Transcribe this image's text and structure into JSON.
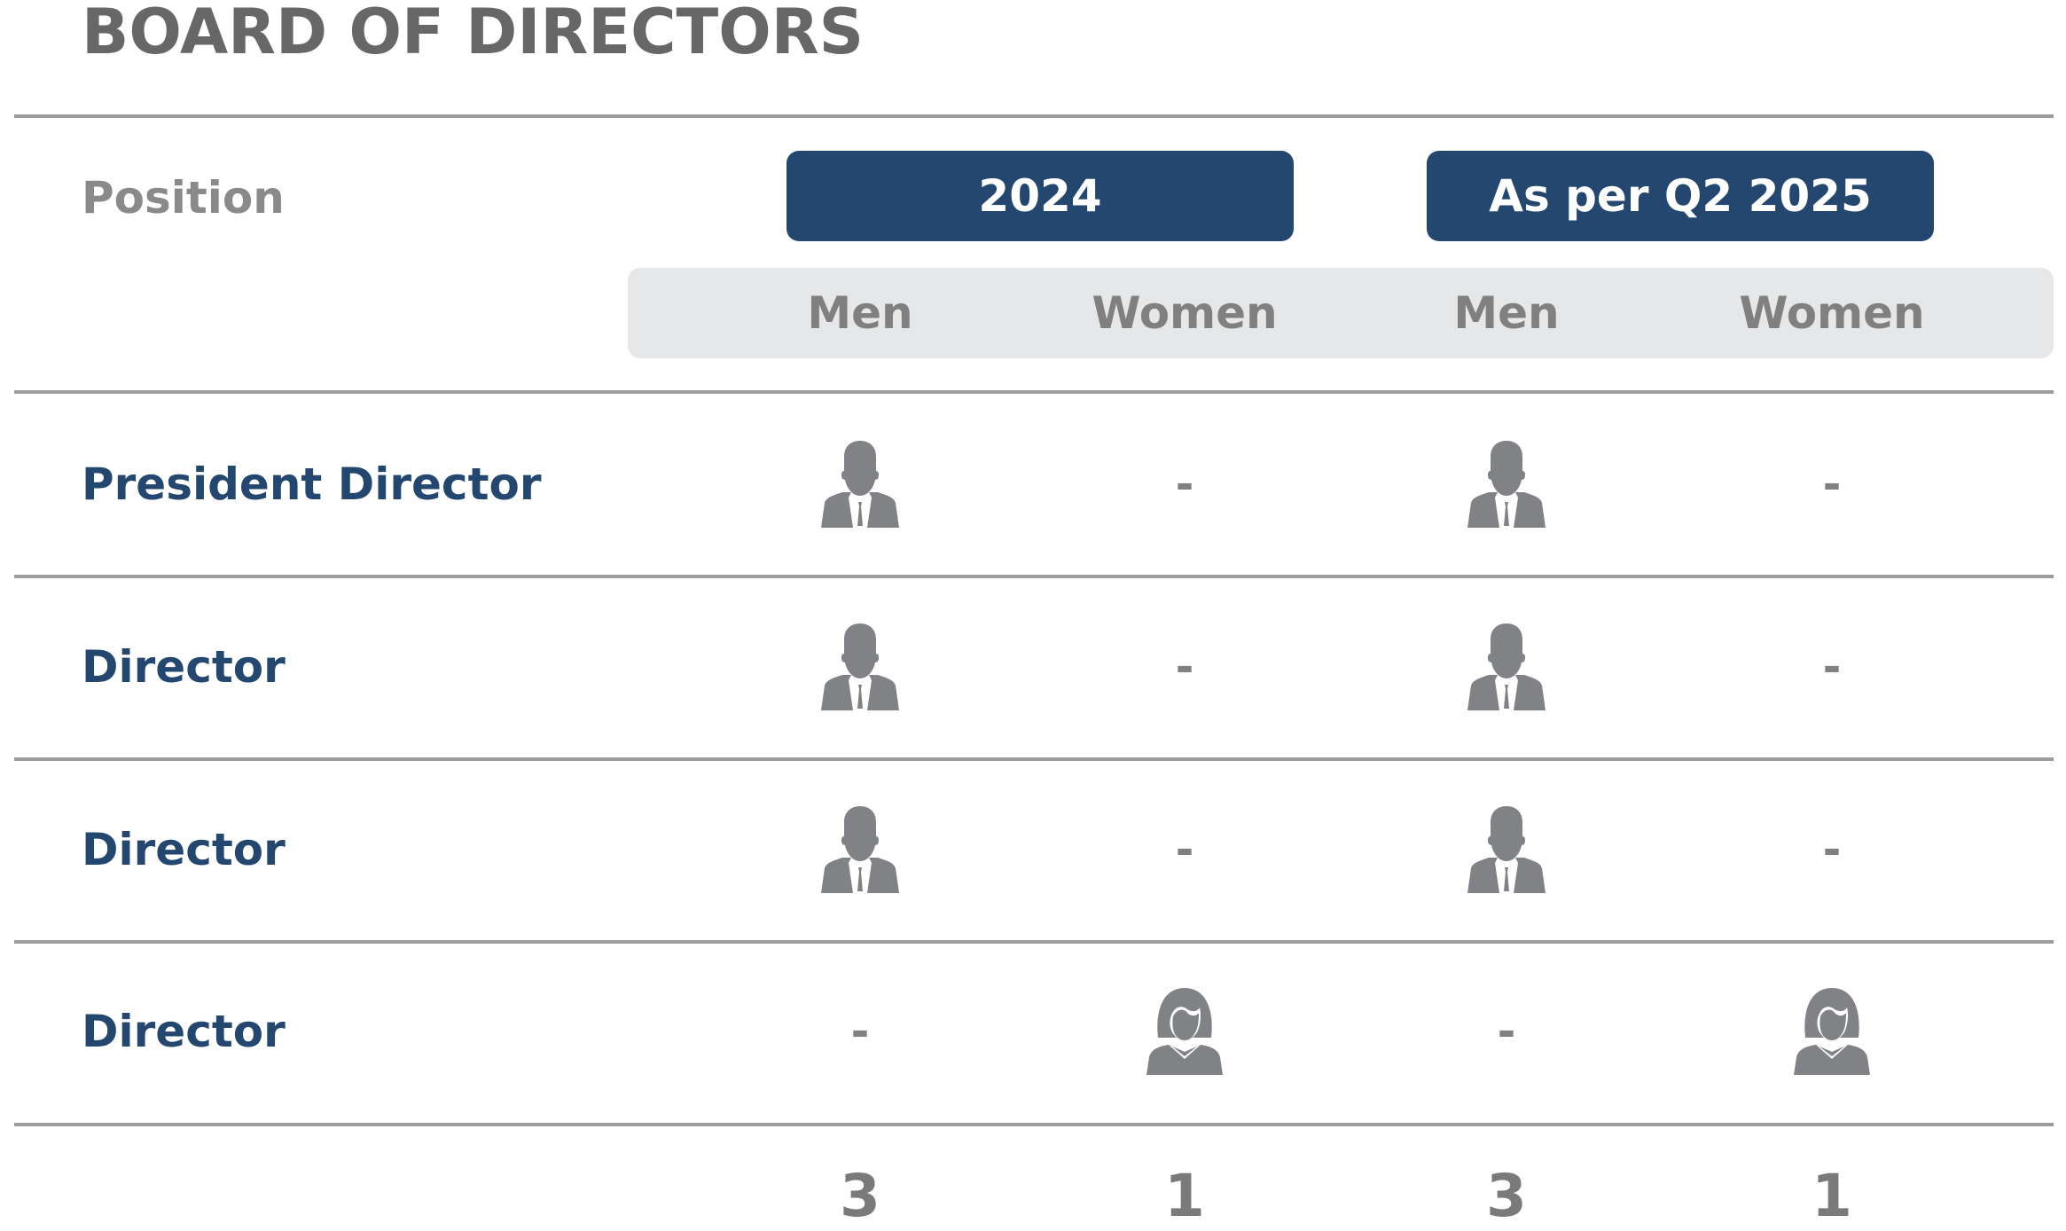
{
  "page_title": "BOARD OF DIRECTORS",
  "header": {
    "position_label": "Position",
    "period_2024": "2024",
    "period_2025": "As per Q2 2025",
    "sub_columns": [
      "Men",
      "Women",
      "Men",
      "Women"
    ]
  },
  "colors": {
    "accent_navy": "#23476f",
    "text_gray": "#676767",
    "icon_gray": "#808285",
    "band_gray": "#e6e7e8"
  },
  "rows": [
    {
      "position": "President Director",
      "cells": [
        "man-icon",
        "-",
        "man-icon",
        "-"
      ]
    },
    {
      "position": "Director",
      "cells": [
        "man-icon",
        "-",
        "man-icon",
        "-"
      ]
    },
    {
      "position": "Director",
      "cells": [
        "man-icon",
        "-",
        "man-icon",
        "-"
      ]
    },
    {
      "position": "Director",
      "cells": [
        "-",
        "woman-icon",
        "-",
        "woman-icon"
      ]
    }
  ],
  "totals": [
    "3",
    "1",
    "3",
    "1"
  ]
}
